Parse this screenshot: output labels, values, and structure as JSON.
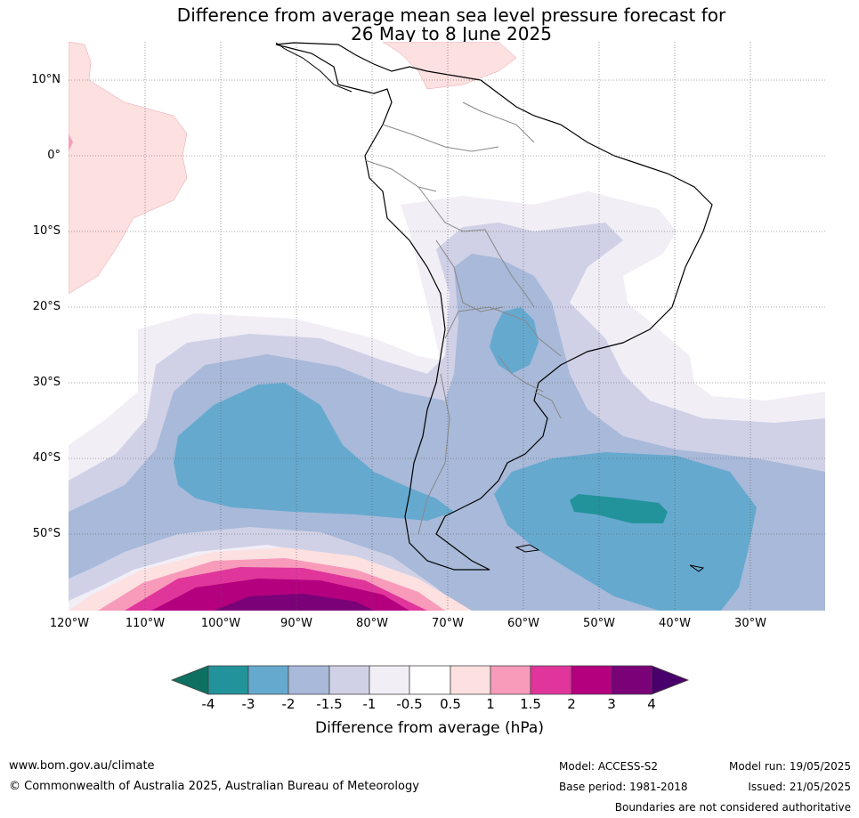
{
  "title": {
    "line1": "Difference from average mean sea level pressure forecast for",
    "line2": "26 May to 8 June 2025"
  },
  "map": {
    "lat_labels": [
      "10°N",
      "0°",
      "10°S",
      "20°S",
      "30°S",
      "40°S",
      "50°S"
    ],
    "lon_labels": [
      "120°W",
      "110°W",
      "100°W",
      "90°W",
      "80°W",
      "70°W",
      "60°W",
      "50°W",
      "40°W",
      "30°W"
    ],
    "colors": {
      "-4": "#0d7060",
      "-3": "#22939a",
      "-2": "#66a9cf",
      "-1.5": "#a8b9d9",
      "-1": "#d0d1e6",
      "-0.5": "#f1eef6",
      "0": "#ffffff",
      "0.5": "#fde0e0",
      "1": "#f89bbb",
      "1.5": "#e0369b",
      "2": "#b4007f",
      "3": "#7a0177",
      "4": "#4a006a"
    }
  },
  "colorbar": {
    "ticks": [
      "-4",
      "-3",
      "-2",
      "-1.5",
      "-1",
      "-0.5",
      "0.5",
      "1",
      "1.5",
      "2",
      "3",
      "4"
    ],
    "label": "Difference from average (hPa)"
  },
  "footer": {
    "website": "www.bom.gov.au/climate",
    "copyright": "© Commonwealth of Australia 2025, Australian Bureau of Meteorology",
    "model": "Model: ACCESS-S2",
    "base_period": "Base period: 1981-2018",
    "model_run": "Model run: 19/05/2025",
    "issued": "Issued: 21/05/2025",
    "disclaimer": "Boundaries are not considered authoritative"
  }
}
